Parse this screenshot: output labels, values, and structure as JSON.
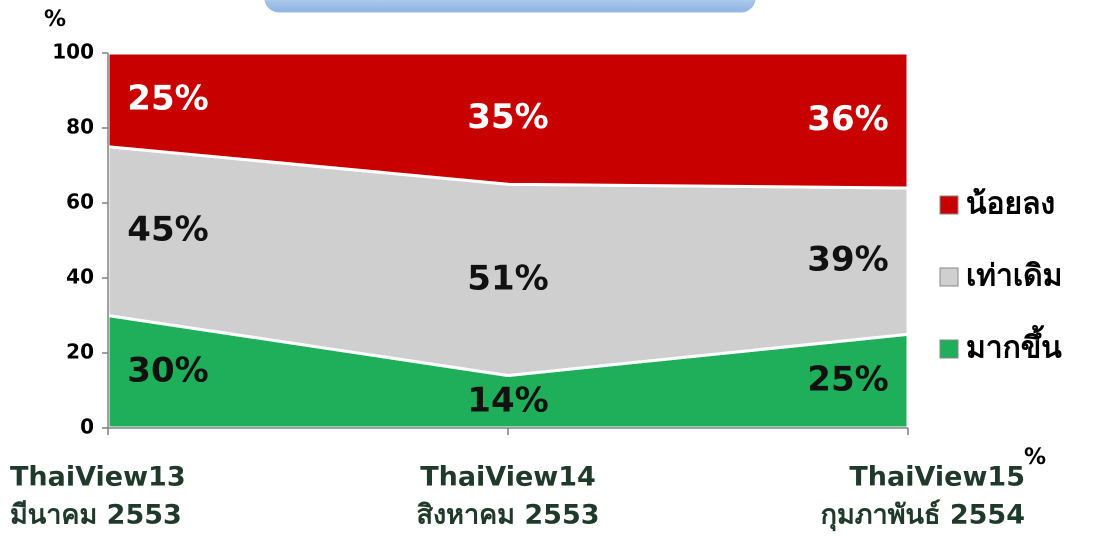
{
  "chart_data": {
    "type": "stacked-area",
    "ylabel": "%",
    "xlabel": "%",
    "categories": [
      [
        "ThaiView13",
        "มีนาคม 2553"
      ],
      [
        "ThaiView14",
        "สิงหาคม 2553"
      ],
      [
        "ThaiView15",
        "กุมภาพันธ์ 2554"
      ]
    ],
    "series": [
      {
        "name": "มากขึ้น",
        "color": "#1fae5a",
        "values": [
          30,
          14,
          25
        ],
        "value_labels": [
          "30%",
          "14%",
          "25%"
        ],
        "label_color": "#111111"
      },
      {
        "name": "เท่าเดิม",
        "color": "#cfcfcf",
        "values": [
          45,
          51,
          39
        ],
        "value_labels": [
          "45%",
          "51%",
          "39%"
        ],
        "label_color": "#111111"
      },
      {
        "name": "น้อยลง",
        "color": "#c80000",
        "values": [
          25,
          35,
          36
        ],
        "value_labels": [
          "25%",
          "35%",
          "36%"
        ],
        "label_color": "#ffffff"
      }
    ],
    "ylim": [
      0,
      100
    ],
    "yticks": [
      0,
      20,
      40,
      60,
      80,
      100
    ],
    "legend": "right"
  }
}
